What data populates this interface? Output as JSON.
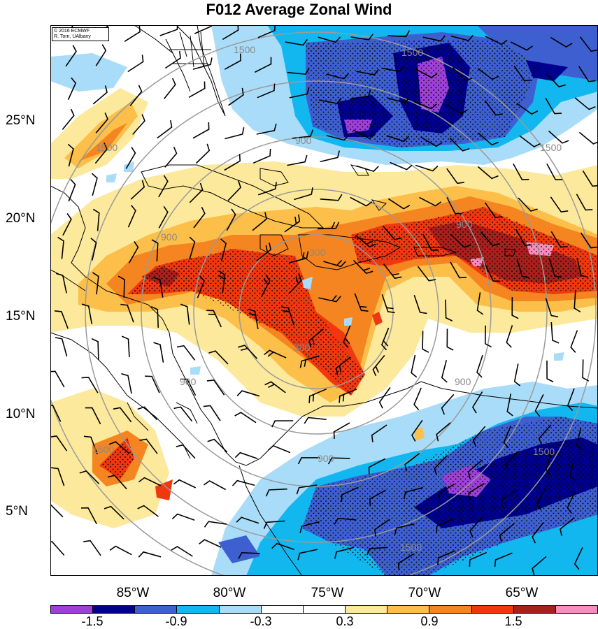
{
  "title": "F012 Average Zonal Wind",
  "credit": {
    "line1": "© 2016 ECMWF",
    "line2": "R. Torn, UAlbany"
  },
  "lat_labels": [
    "25°N",
    "20°N",
    "15°N",
    "10°N",
    "5°N"
  ],
  "lon_labels": [
    "85°W",
    "80°W",
    "75°W",
    "70°W",
    "65°W"
  ],
  "contour_labels": [
    "1500",
    "1500",
    "1500",
    "1500",
    "1500",
    "1500",
    "1500",
    "900",
    "900",
    "900",
    "900",
    "900",
    "900",
    "300",
    "300"
  ],
  "colorbar": {
    "colors": [
      "#9e40d8",
      "#00008f",
      "#3d5fd0",
      "#13b7f0",
      "#a9dcf8",
      "#ffffff",
      "#ffffff",
      "#fde99b",
      "#fbbf4a",
      "#f48520",
      "#f03810",
      "#a8201c",
      "#f88ec0"
    ],
    "labels": [
      "-1.5",
      "-0.9",
      "-0.3",
      "0.3",
      "0.9",
      "1.5"
    ]
  }
}
